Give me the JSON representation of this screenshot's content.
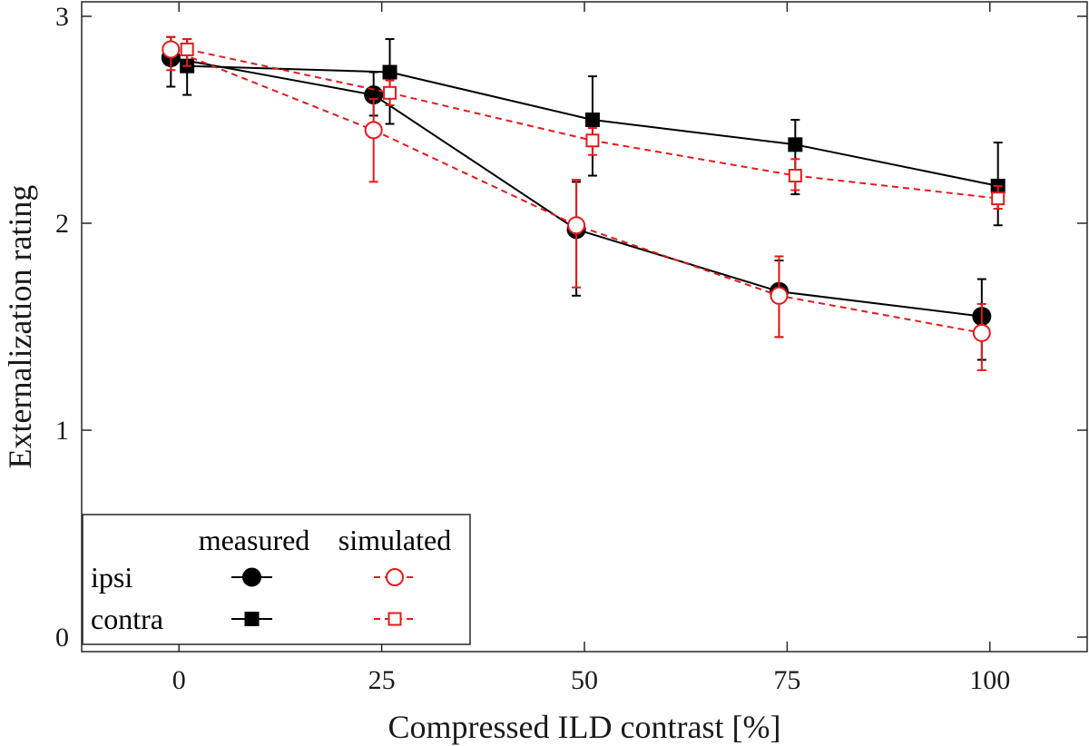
{
  "chart_data": {
    "type": "line",
    "title": "",
    "xlabel": "Compressed ILD contrast [%]",
    "ylabel": "Externalization rating",
    "xlim": [
      -12,
      112
    ],
    "ylim": [
      -0.07,
      3.07
    ],
    "xticks": [
      0,
      25,
      50,
      75,
      100
    ],
    "yticks": [
      0,
      1,
      2,
      3
    ],
    "grid": false,
    "legend": {
      "placement": "bottom-left",
      "column_headers": [
        "measured",
        "simulated"
      ],
      "row_labels": [
        "ipsi",
        "contra"
      ]
    },
    "series": [
      {
        "condition": "ipsi",
        "source": "measured",
        "marker": "circle-filled",
        "line": "solid",
        "color": "#000000",
        "x": [
          -1,
          24,
          49,
          74,
          99
        ],
        "y": [
          2.8,
          2.62,
          1.97,
          1.67,
          1.55
        ],
        "err_low": [
          2.66,
          2.52,
          1.65,
          1.45,
          1.34
        ],
        "err_high": [
          2.9,
          2.73,
          2.2,
          1.82,
          1.73
        ]
      },
      {
        "condition": "contra",
        "source": "measured",
        "marker": "square-filled",
        "line": "solid",
        "color": "#000000",
        "x": [
          1,
          26,
          51,
          76,
          101
        ],
        "y": [
          2.76,
          2.73,
          2.5,
          2.38,
          2.18
        ],
        "err_low": [
          2.62,
          2.48,
          2.23,
          2.14,
          1.99
        ],
        "err_high": [
          2.89,
          2.89,
          2.71,
          2.5,
          2.39
        ]
      },
      {
        "condition": "ipsi",
        "source": "simulated",
        "marker": "circle-open",
        "line": "dashed",
        "color": "#e41a1c",
        "x": [
          -1,
          24,
          49,
          74,
          99
        ],
        "y": [
          2.84,
          2.45,
          1.99,
          1.65,
          1.47
        ],
        "err_low": [
          2.74,
          2.2,
          1.69,
          1.45,
          1.29
        ],
        "err_high": [
          2.9,
          2.6,
          2.21,
          1.84,
          1.61
        ]
      },
      {
        "condition": "contra",
        "source": "simulated",
        "marker": "square-open",
        "line": "dashed",
        "color": "#e41a1c",
        "x": [
          1,
          26,
          51,
          76,
          101
        ],
        "y": [
          2.84,
          2.63,
          2.4,
          2.23,
          2.12
        ],
        "err_low": [
          2.76,
          2.57,
          2.33,
          2.16,
          2.07
        ],
        "err_high": [
          2.89,
          2.69,
          2.46,
          2.31,
          2.18
        ]
      }
    ]
  }
}
